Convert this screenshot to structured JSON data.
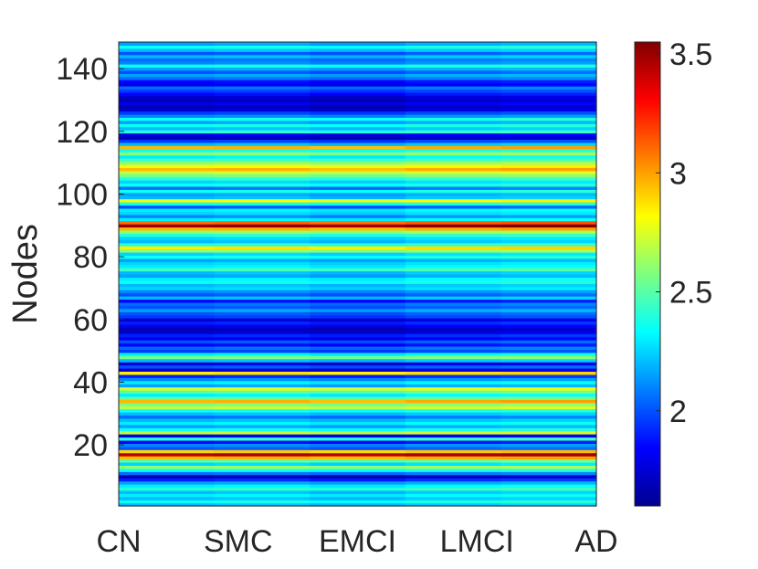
{
  "chart_data": {
    "type": "heatmap",
    "title": "",
    "xlabel": "",
    "ylabel": "Nodes",
    "x_tick_labels": [
      "CN",
      "SMC",
      "EMCI",
      "LMCI",
      "AD"
    ],
    "y_ticks": [
      20,
      40,
      60,
      80,
      100,
      120,
      140
    ],
    "y_tick_labels": [
      "20",
      "40",
      "60",
      "80",
      "100",
      "120",
      "140"
    ],
    "ylim": [
      0.5,
      148.5
    ],
    "n_nodes": 148,
    "colormap": "jet",
    "color_range": [
      1.6,
      3.55
    ],
    "colorbar_ticks": [
      2,
      2.5,
      3,
      3.5
    ],
    "colorbar_tick_labels": [
      "2",
      "2.5",
      "3",
      "3.5"
    ],
    "grid": false,
    "row_values_by_node": [
      2.2,
      2.35,
      2.2,
      2.3,
      2.2,
      2.4,
      2.3,
      2.15,
      1.9,
      1.7,
      2.05,
      2.35,
      2.6,
      2.25,
      2.5,
      2.95,
      3.45,
      2.9,
      2.0,
      2.1,
      1.85,
      2.4,
      1.8,
      2.7,
      2.35,
      2.15,
      2.3,
      2.2,
      2.05,
      2.2,
      2.35,
      2.7,
      2.55,
      2.95,
      2.5,
      2.3,
      2.5,
      2.75,
      2.15,
      2.3,
      2.1,
      1.9,
      2.85,
      1.75,
      2.0,
      1.75,
      2.2,
      2.55,
      2.3,
      1.95,
      2.05,
      1.85,
      2.0,
      1.8,
      1.9,
      1.75,
      1.7,
      1.8,
      1.9,
      1.75,
      1.95,
      2.0,
      2.15,
      2.0,
      2.05,
      1.85,
      2.2,
      2.0,
      2.1,
      2.25,
      2.2,
      2.35,
      2.3,
      2.15,
      2.2,
      2.45,
      2.3,
      2.25,
      2.15,
      2.35,
      2.25,
      2.6,
      2.85,
      2.4,
      2.2,
      2.25,
      2.4,
      2.6,
      2.95,
      3.5,
      3.1,
      2.3,
      2.1,
      2.25,
      2.3,
      2.0,
      2.35,
      2.8,
      2.2,
      2.15,
      2.35,
      2.05,
      2.35,
      2.25,
      2.4,
      2.55,
      2.7,
      2.95,
      2.8,
      2.6,
      2.45,
      2.3,
      2.6,
      2.35,
      2.95,
      2.2,
      1.95,
      1.7,
      1.8,
      2.4,
      2.2,
      2.35,
      2.15,
      2.35,
      2.1,
      1.95,
      1.75,
      1.7,
      1.8,
      1.7,
      1.75,
      1.85,
      1.95,
      2.05,
      1.8,
      1.85,
      2.05,
      2.15,
      2.0,
      2.15,
      2.35,
      2.1,
      2.05,
      2.2,
      2.0,
      2.2,
      2.35,
      2.15
    ],
    "column_drift": [
      0.0,
      0.02,
      -0.01,
      0.03,
      0.05
    ]
  }
}
